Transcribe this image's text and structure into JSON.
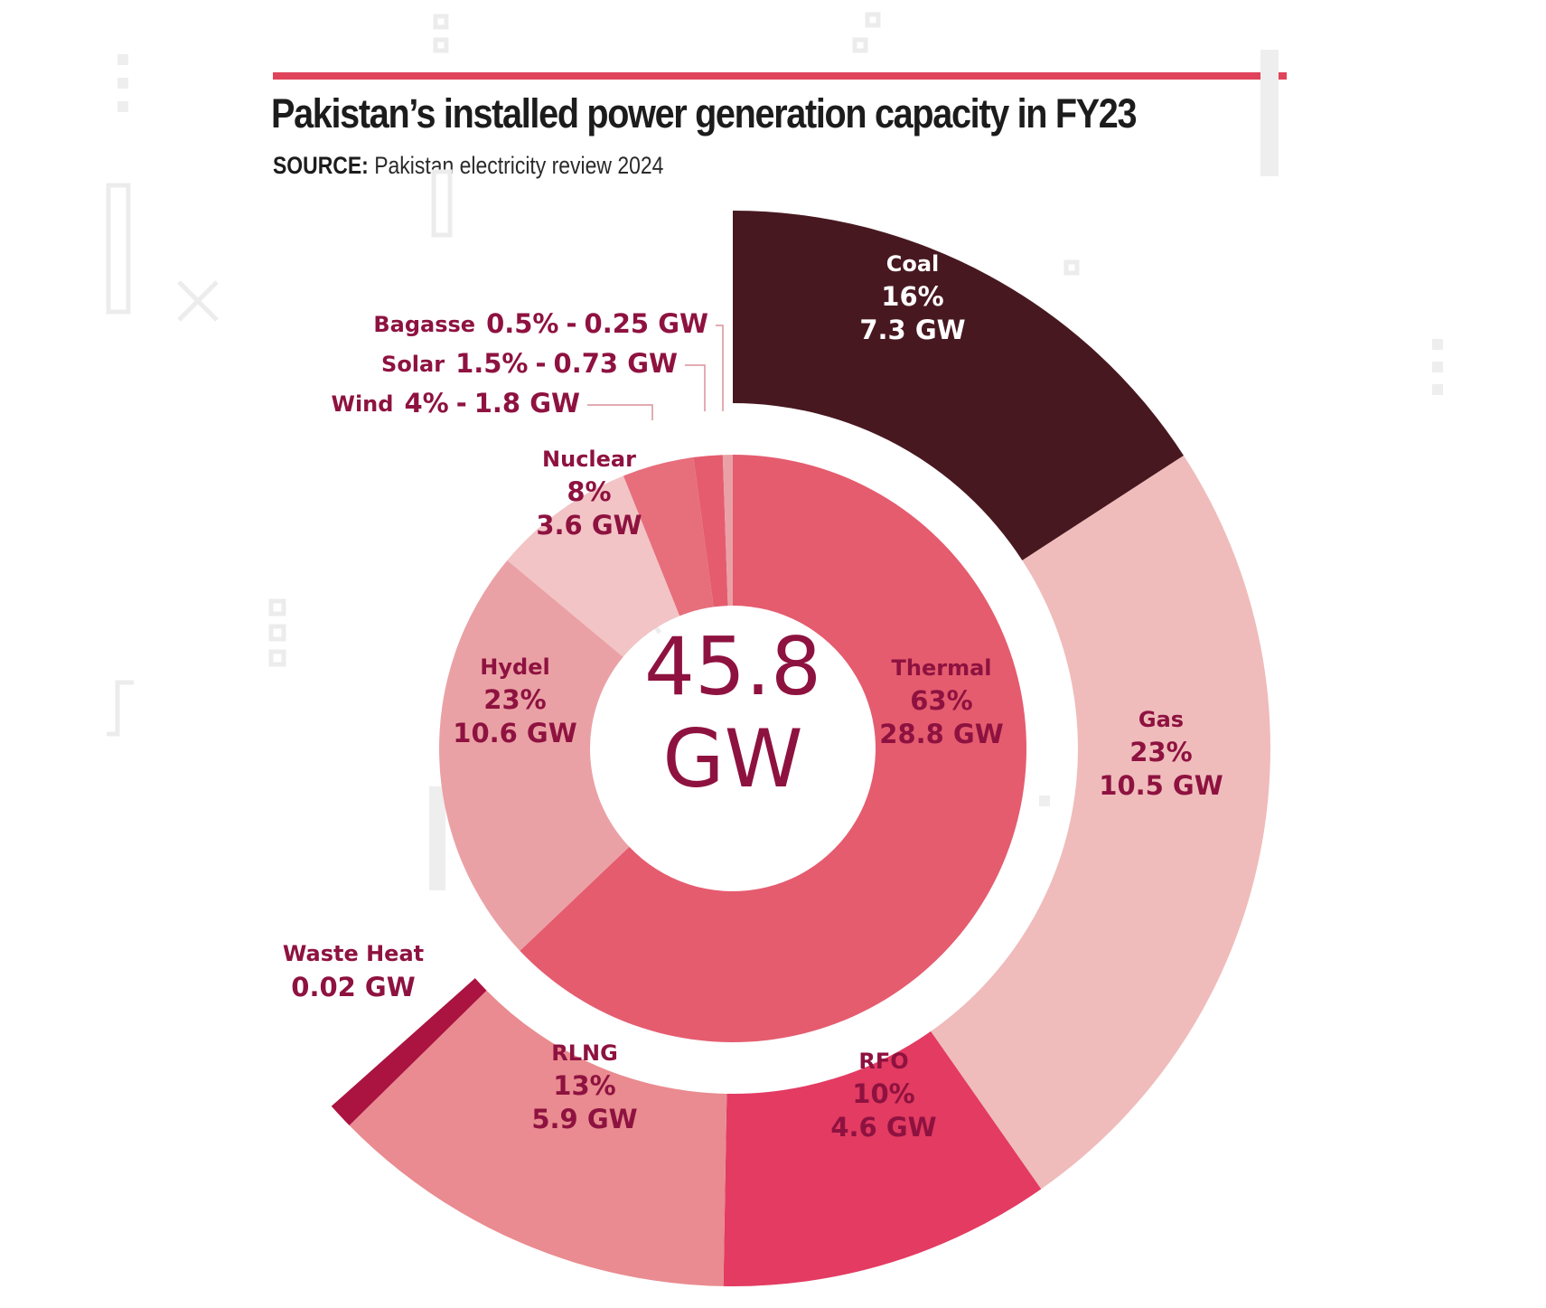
{
  "header": {
    "title": "Pakistan’s installed power generation capacity in FY23",
    "source_label": "SOURCE:",
    "source_text": "Pakistan electricity review 2024"
  },
  "colors": {
    "accent_rule": "#e0445a",
    "label_text": "#8e1240",
    "dark_label_text": "#ffffff"
  },
  "chart_data": {
    "type": "pie",
    "subtype": "sunburst",
    "center_total": {
      "value": "45.8",
      "unit": "GW"
    },
    "inner_ring": [
      {
        "name": "Thermal",
        "percent": "63%",
        "capacity": "28.8 GW",
        "gw": 28.8,
        "color": "#e55c6f"
      },
      {
        "name": "Hydel",
        "percent": "23%",
        "capacity": "10.6 GW",
        "gw": 10.6,
        "color": "#eaa1a5"
      },
      {
        "name": "Nuclear",
        "percent": "8%",
        "capacity": "3.6 GW",
        "gw": 3.6,
        "color": "#f2c4c5"
      },
      {
        "name": "Wind",
        "percent": "4%",
        "capacity": "1.8 GW",
        "gw": 1.8,
        "color": "#e76e7b"
      },
      {
        "name": "Solar",
        "percent": "1.5%",
        "capacity": "0.73 GW",
        "gw": 0.73,
        "color": "#e55c6f"
      },
      {
        "name": "Bagasse",
        "percent": "0.5%",
        "capacity": "0.25 GW",
        "gw": 0.25,
        "color": "#eaa1a5"
      }
    ],
    "outer_ring": [
      {
        "name": "Coal",
        "percent": "16%",
        "capacity": "7.3 GW",
        "gw": 7.3,
        "color": "#481820"
      },
      {
        "name": "Gas",
        "percent": "23%",
        "capacity": "10.5 GW",
        "gw": 10.5,
        "color": "#efbcbb"
      },
      {
        "name": "RFO",
        "percent": "10%",
        "capacity": "4.6 GW",
        "gw": 4.6,
        "color": "#e33b62"
      },
      {
        "name": "RLNG",
        "percent": "13%",
        "capacity": "5.9 GW",
        "gw": 5.9,
        "color": "#e98b90"
      },
      {
        "name": "Waste Heat",
        "percent": "",
        "capacity": "0.02 GW",
        "gw": 0.02,
        "color": "#ab1340"
      }
    ]
  }
}
